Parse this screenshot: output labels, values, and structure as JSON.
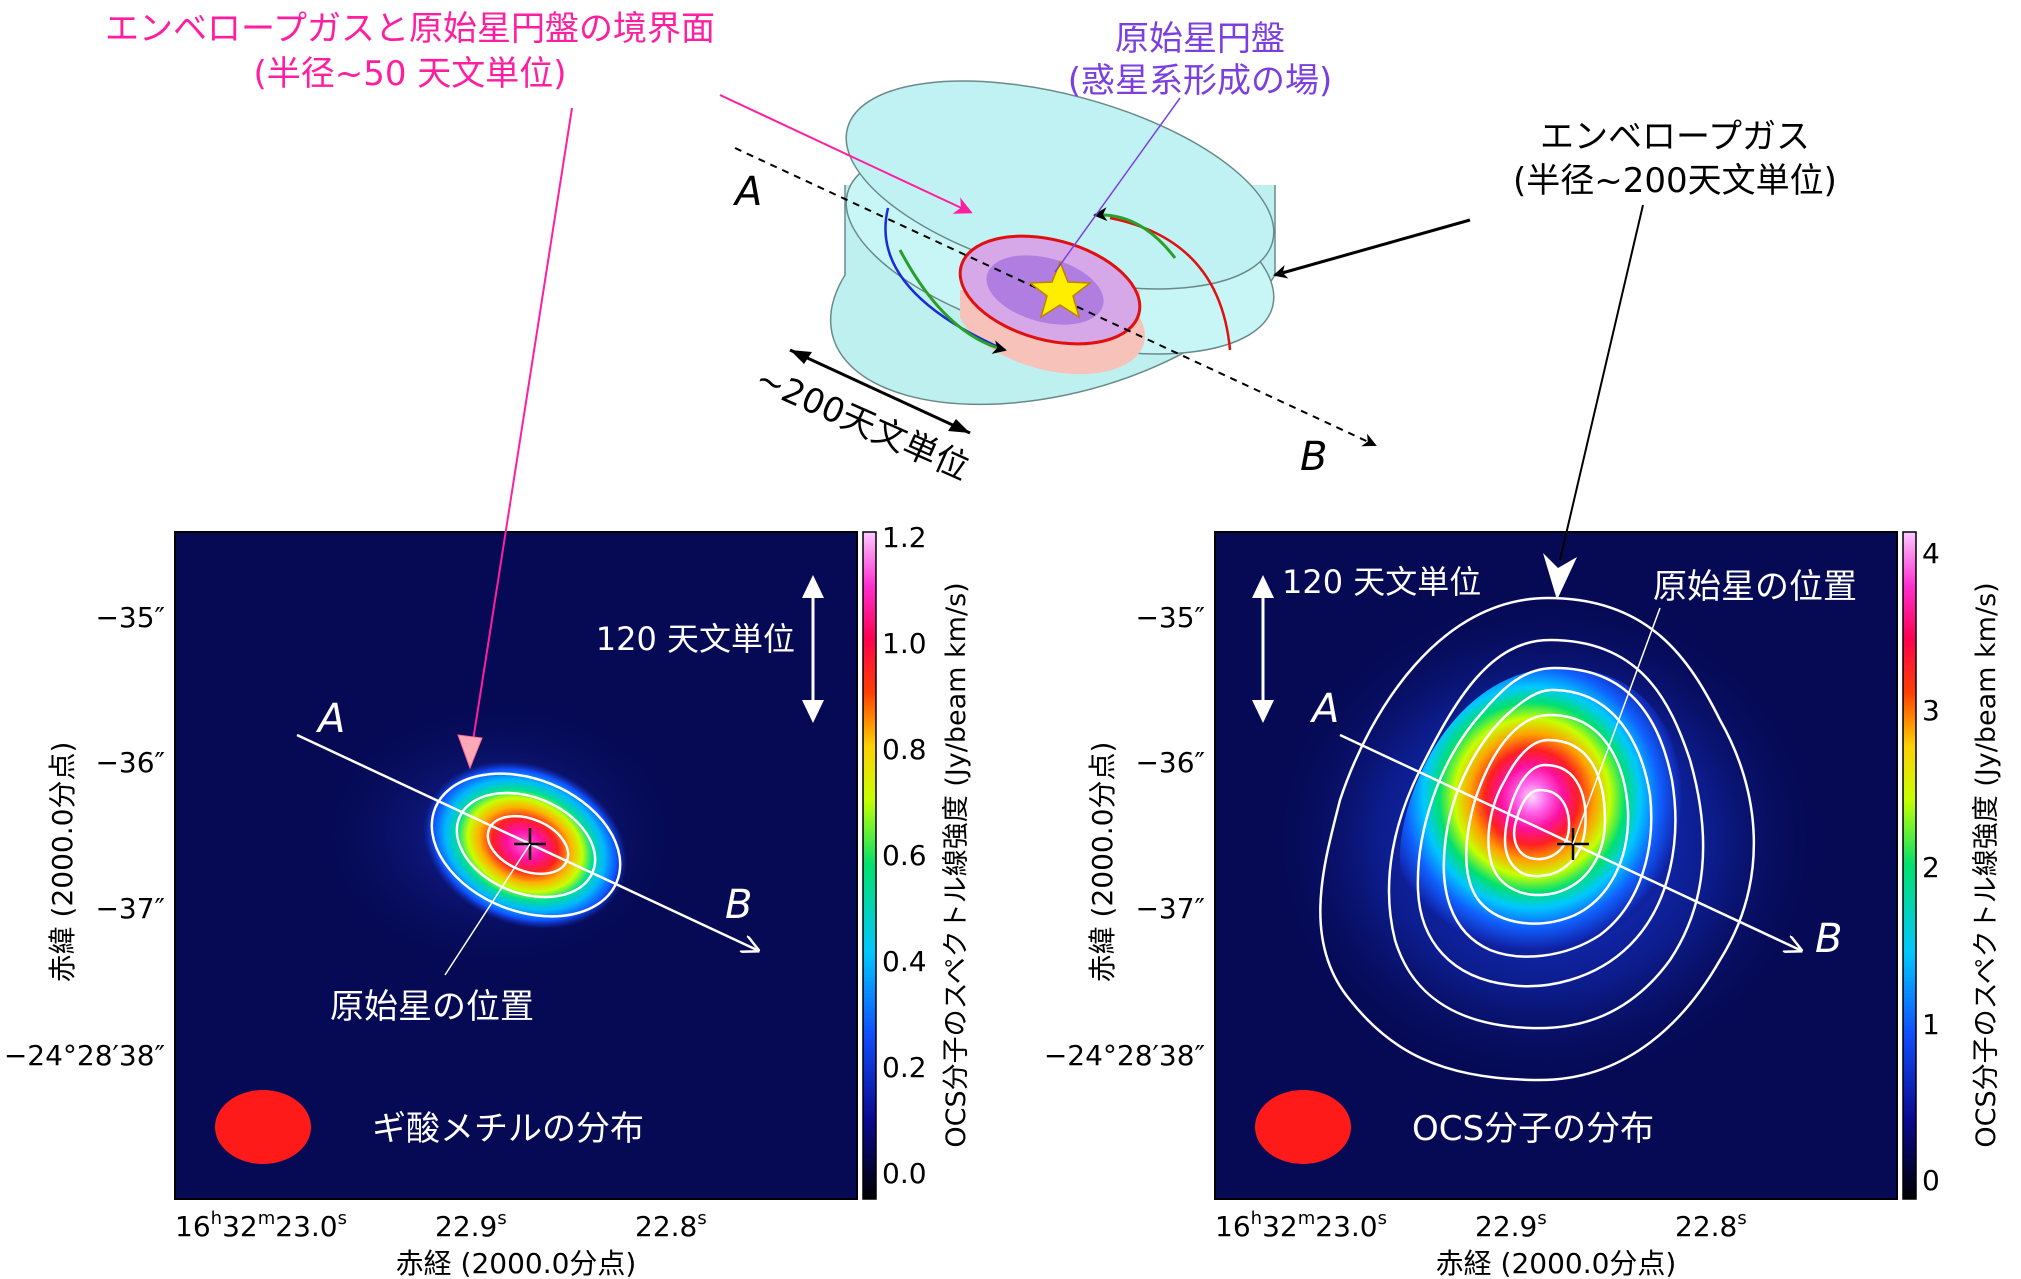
{
  "diagram": {
    "interface_label": "エンベロープガスと原始星円盤の境界面",
    "interface_radius": "(半径~50 天文単位)",
    "disk_label": "原始星円盤",
    "disk_sub": "(惑星系形成の場)",
    "envelope_label": "エンベロープガス",
    "envelope_radius": "(半径~200天文単位)",
    "scale_label": "~200天文単位",
    "point_a": "A",
    "point_b": "B"
  },
  "left_panel": {
    "species_label": "ギ酸メチルの分布",
    "scale_label": "120 天文単位",
    "protostar_label": "原始星の位置",
    "point_a": "A",
    "point_b": "B",
    "y_ticks": [
      "−35″",
      "−36″",
      "−37″",
      "−24°28′38″"
    ],
    "y_label": "赤緯 (2000.0分点)",
    "x_label": "赤経 (2000.0分点)",
    "x_tick_0_main": "16",
    "x_tick_0_h": "h",
    "x_tick_0_mid": "32",
    "x_tick_0_m": "m",
    "x_tick_0_end": "23.0",
    "x_tick_0_s": "s",
    "x_tick_1": "22.9",
    "x_tick_1_s": "s",
    "x_tick_2": "22.8",
    "x_tick_2_s": "s",
    "colorbar_ticks": [
      "1.2",
      "1.0",
      "0.8",
      "0.6",
      "0.4",
      "0.2",
      "0.0"
    ],
    "colorbar_label": "OCS分子のスペクトル線強度 (Jy/beam km/s)"
  },
  "right_panel": {
    "species_label": "OCS分子の分布",
    "scale_label": "120 天文単位",
    "protostar_label": "原始星の位置",
    "point_a": "A",
    "point_b": "B",
    "y_ticks": [
      "−35″",
      "−36″",
      "−37″",
      "−24°28′38″"
    ],
    "y_label": "赤緯 (2000.0分点)",
    "x_label": "赤経 (2000.0分点)",
    "x_tick_0_main": "16",
    "x_tick_0_h": "h",
    "x_tick_0_mid": "32",
    "x_tick_0_m": "m",
    "x_tick_0_end": "23.0",
    "x_tick_0_s": "s",
    "x_tick_1": "22.9",
    "x_tick_1_s": "s",
    "x_tick_2": "22.8",
    "x_tick_2_s": "s",
    "colorbar_ticks": [
      "4",
      "3",
      "2",
      "1",
      "0"
    ],
    "colorbar_label": "OCS分子のスペクトル線強度 (Jy/beam km/s)"
  },
  "colors": {
    "magenta_label": "#ff1ea0",
    "purple_label": "#7b3fe0",
    "beam": "#ff1a1a",
    "map_bg": "#060a55"
  }
}
